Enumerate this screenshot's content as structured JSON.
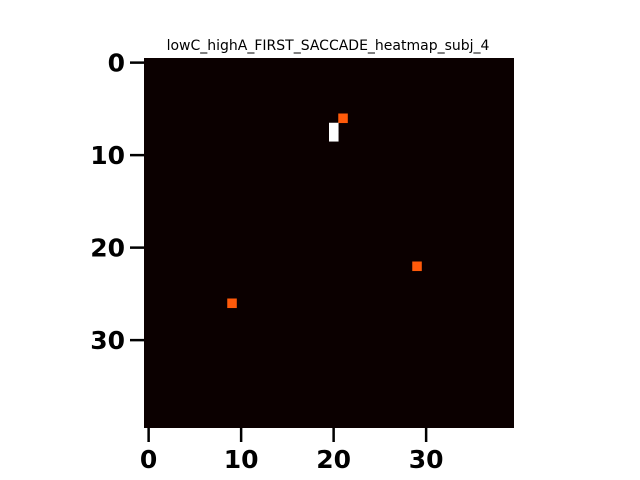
{
  "chart_data": {
    "type": "heatmap",
    "title": "lowC_highA_FIRST_SACCADE_heatmap_subj_4",
    "xlabel": "",
    "ylabel": "",
    "grid_size": [
      40,
      40
    ],
    "xlim": [
      -0.5,
      39.5
    ],
    "ylim": [
      39.5,
      -0.5
    ],
    "x_ticks": [
      0,
      10,
      20,
      30
    ],
    "y_ticks": [
      0,
      10,
      20,
      30
    ],
    "colormap": "hot",
    "background_value": 0,
    "vmax": 2,
    "colors": {
      "low": "#0b0000",
      "mid": "#ff5a0a",
      "high": "#ffffff"
    },
    "cells": [
      {
        "x": 21,
        "y": 6,
        "value": 1
      },
      {
        "x": 20,
        "y": 7,
        "value": 2
      },
      {
        "x": 20,
        "y": 8,
        "value": 2
      },
      {
        "x": 29,
        "y": 22,
        "value": 1
      },
      {
        "x": 9,
        "y": 26,
        "value": 1
      }
    ],
    "grid": false,
    "legend": "none"
  }
}
